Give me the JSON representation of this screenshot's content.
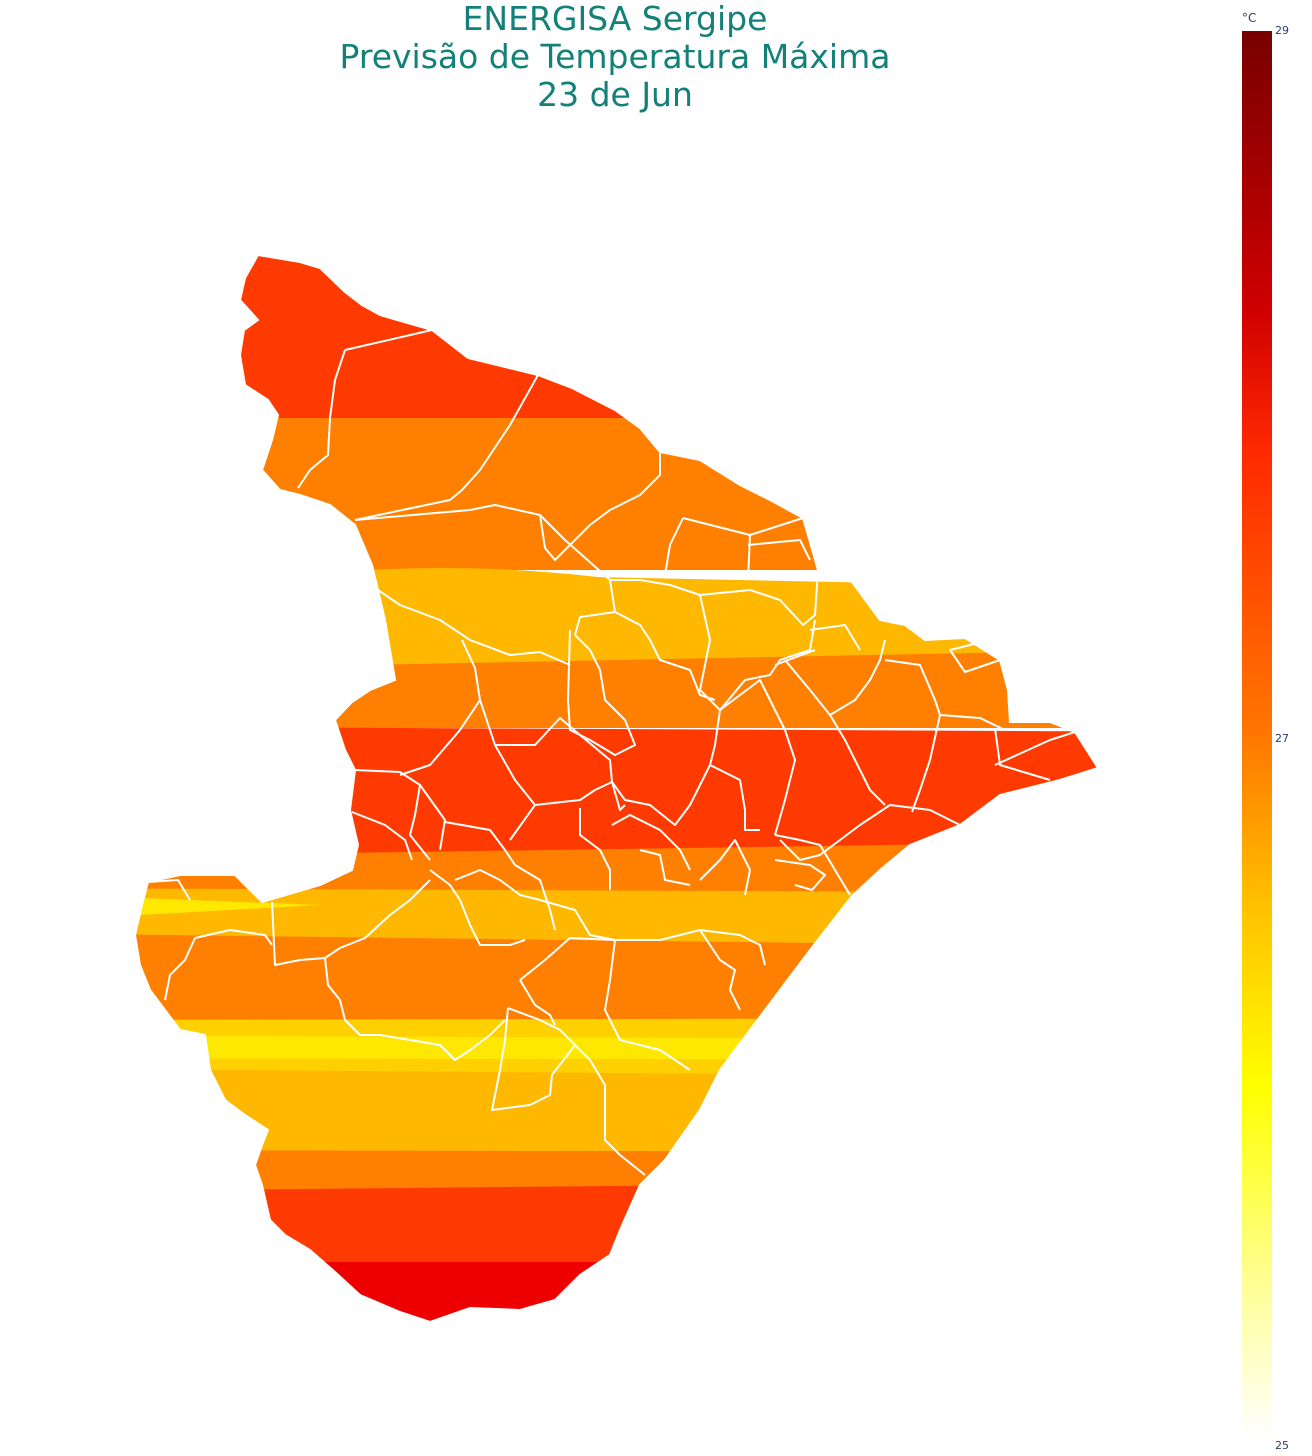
{
  "title": {
    "line1": "ENERGISA Sergipe",
    "line2": "Previsão de Temperatura Máxima",
    "line3": "23 de Jun"
  },
  "colorbar": {
    "unit": "°C",
    "min": 25,
    "max": 29,
    "ticks": [
      "29",
      "27",
      "25"
    ],
    "tick_values": [
      29,
      27,
      25
    ],
    "colors": [
      "#780000",
      "#d00000",
      "#ff2a00",
      "#ff7700",
      "#ffc000",
      "#ffff00",
      "#ffffa0",
      "#ffffff"
    ]
  },
  "map": {
    "region": "Sergipe",
    "band_colors": {
      "28": "#ff3a00",
      "27": "#ff8000",
      "26.5": "#ffb800",
      "26": "#ffe800",
      "28.5": "#ee0000"
    },
    "border_color": "#ffffff"
  }
}
